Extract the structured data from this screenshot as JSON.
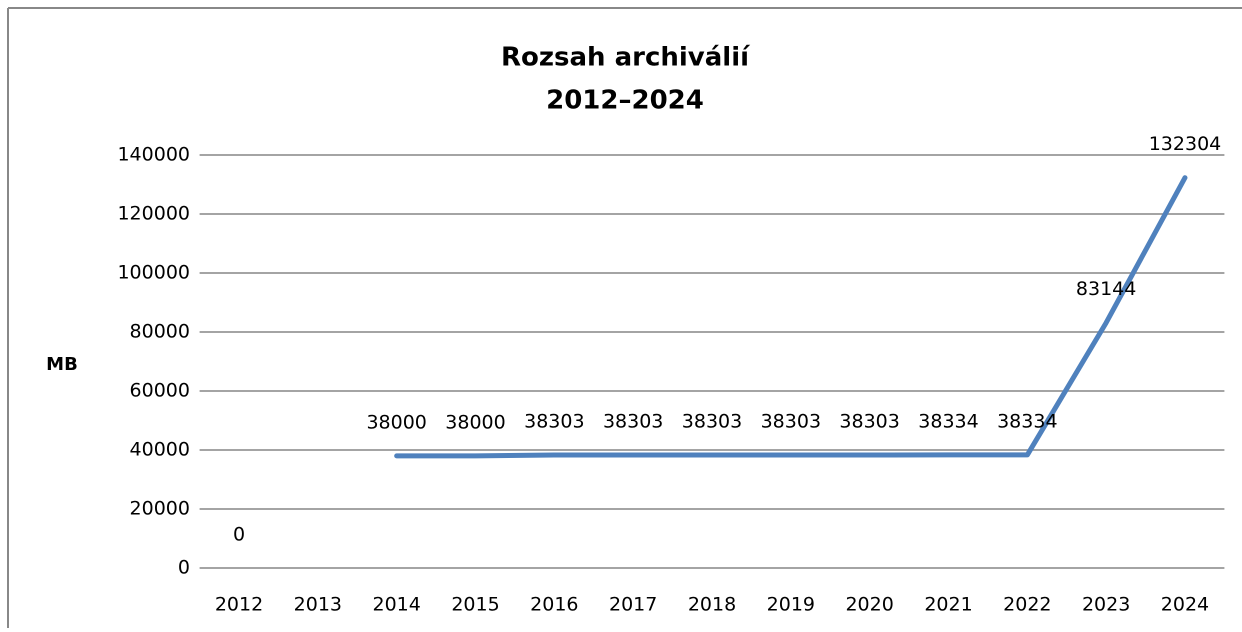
{
  "chart_data": {
    "type": "line",
    "title": [
      "Rozsah archiválií",
      "2012–2024"
    ],
    "y_label": "MB",
    "categories": [
      "2012",
      "2013",
      "2014",
      "2015",
      "2016",
      "2017",
      "2018",
      "2019",
      "2020",
      "2021",
      "2022",
      "2023",
      "2024"
    ],
    "series": [
      {
        "color": "#4f81bd",
        "values": [
          0,
          null,
          38000,
          38000,
          38303,
          38303,
          38303,
          38303,
          38303,
          38334,
          38334,
          83144,
          132304
        ]
      }
    ],
    "ylim": [
      0,
      140000
    ],
    "yticks": [
      0,
      20000,
      40000,
      60000,
      80000,
      100000,
      120000,
      140000
    ],
    "grid": true,
    "data_labels": true
  }
}
